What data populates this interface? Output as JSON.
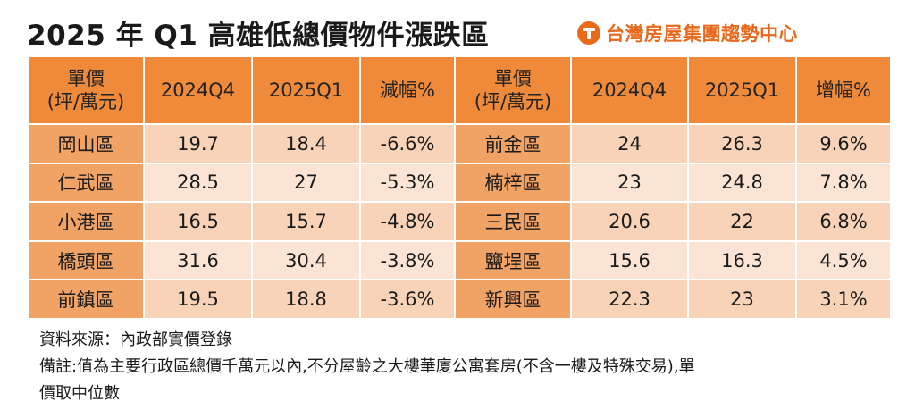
{
  "title": "2025 年 Q1 高雄低總價物件漲跌區",
  "brand": {
    "logo_icon": "t-letter-circle-icon",
    "name": "台灣房屋集團趨勢中心",
    "color": "#e8691c"
  },
  "table": {
    "left_headers": {
      "unit_line1": "單價",
      "unit_line2": "(坪/萬元)",
      "prev": "2024Q4",
      "curr": "2025Q1",
      "change": "減幅%"
    },
    "right_headers": {
      "unit_line1": "單價",
      "unit_line2": "(坪/萬元)",
      "prev": "2024Q4",
      "curr": "2025Q1",
      "change": "增幅%"
    },
    "rows": [
      {
        "left": {
          "region": "岡山區",
          "prev": "19.7",
          "curr": "18.4",
          "change": "-6.6%"
        },
        "right": {
          "region": "前金區",
          "prev": "24",
          "curr": "26.3",
          "change": "9.6%"
        }
      },
      {
        "left": {
          "region": "仁武區",
          "prev": "28.5",
          "curr": "27",
          "change": "-5.3%"
        },
        "right": {
          "region": "楠梓區",
          "prev": "23",
          "curr": "24.8",
          "change": "7.8%"
        }
      },
      {
        "left": {
          "region": "小港區",
          "prev": "16.5",
          "curr": "15.7",
          "change": "-4.8%"
        },
        "right": {
          "region": "三民區",
          "prev": "20.6",
          "curr": "22",
          "change": "6.8%"
        }
      },
      {
        "left": {
          "region": "橋頭區",
          "prev": "31.6",
          "curr": "30.4",
          "change": "-3.8%"
        },
        "right": {
          "region": "鹽埕區",
          "prev": "15.6",
          "curr": "16.3",
          "change": "4.5%"
        }
      },
      {
        "left": {
          "region": "前鎮區",
          "prev": "19.5",
          "curr": "18.8",
          "change": "-3.6%"
        },
        "right": {
          "region": "新興區",
          "prev": "22.3",
          "curr": "23",
          "change": "3.1%"
        }
      }
    ],
    "colors": {
      "header": "#ee8a3a",
      "region": "#f1a265",
      "row_odd": "#f9d3b8",
      "row_even": "#fbe4d4",
      "decrease": "#1e8a2e",
      "increase": "#c0282d"
    }
  },
  "notes": {
    "source": "資料來源：內政部實價登錄",
    "remark_line1": "備註:值為主要行政區總價千萬元以內,不分屋齡之大樓華廈公寓套房(不含一樓及特殊交易),單",
    "remark_line2": "價取中位數"
  },
  "chart_data": {
    "type": "table",
    "title": "2025 年 Q1 高雄低總價物件漲跌區",
    "unit": "單價(坪/萬元)",
    "columns": [
      "2024Q4",
      "2025Q1"
    ],
    "decrease": [
      {
        "region": "岡山區",
        "2024Q4": 19.7,
        "2025Q1": 18.4,
        "change_pct": -6.6
      },
      {
        "region": "仁武區",
        "2024Q4": 28.5,
        "2025Q1": 27,
        "change_pct": -5.3
      },
      {
        "region": "小港區",
        "2024Q4": 16.5,
        "2025Q1": 15.7,
        "change_pct": -4.8
      },
      {
        "region": "橋頭區",
        "2024Q4": 31.6,
        "2025Q1": 30.4,
        "change_pct": -3.8
      },
      {
        "region": "前鎮區",
        "2024Q4": 19.5,
        "2025Q1": 18.8,
        "change_pct": -3.6
      }
    ],
    "increase": [
      {
        "region": "前金區",
        "2024Q4": 24,
        "2025Q1": 26.3,
        "change_pct": 9.6
      },
      {
        "region": "楠梓區",
        "2024Q4": 23,
        "2025Q1": 24.8,
        "change_pct": 7.8
      },
      {
        "region": "三民區",
        "2024Q4": 20.6,
        "2025Q1": 22,
        "change_pct": 6.8
      },
      {
        "region": "鹽埕區",
        "2024Q4": 15.6,
        "2025Q1": 16.3,
        "change_pct": 4.5
      },
      {
        "region": "新興區",
        "2024Q4": 22.3,
        "2025Q1": 23,
        "change_pct": 3.1
      }
    ]
  }
}
